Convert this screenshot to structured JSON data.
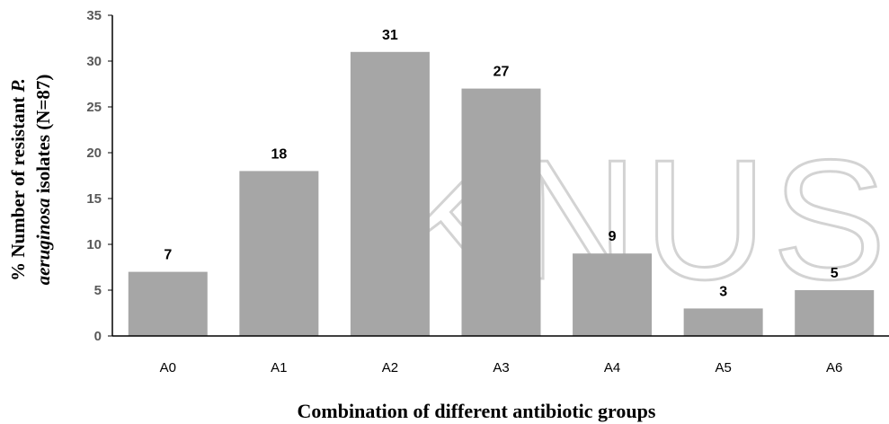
{
  "chart_data": {
    "type": "bar",
    "categories": [
      "A0",
      "A1",
      "A2",
      "A3",
      "A4",
      "A5",
      "A6"
    ],
    "values": [
      7,
      18,
      31,
      27,
      9,
      3,
      5
    ],
    "data_labels": [
      "7",
      "18",
      "31",
      "27",
      "9",
      "3",
      "5"
    ],
    "xlabel": "Combination of different antibiotic groups",
    "ylabel_line1_prefix": "% Number of resistant ",
    "ylabel_line1_italic": "P.",
    "ylabel_line2_italic": "aeruginosa",
    "ylabel_line2_suffix": " isolates (N=87)",
    "ylim": [
      0,
      35
    ],
    "yticks": [
      0,
      5,
      10,
      15,
      20,
      25,
      30,
      35
    ],
    "grid": false,
    "legend": "none",
    "bar_color": "#a6a6a6",
    "axis_color": "#000000"
  },
  "watermark": {
    "text": "KNUST",
    "color": "#d3d3d3"
  }
}
